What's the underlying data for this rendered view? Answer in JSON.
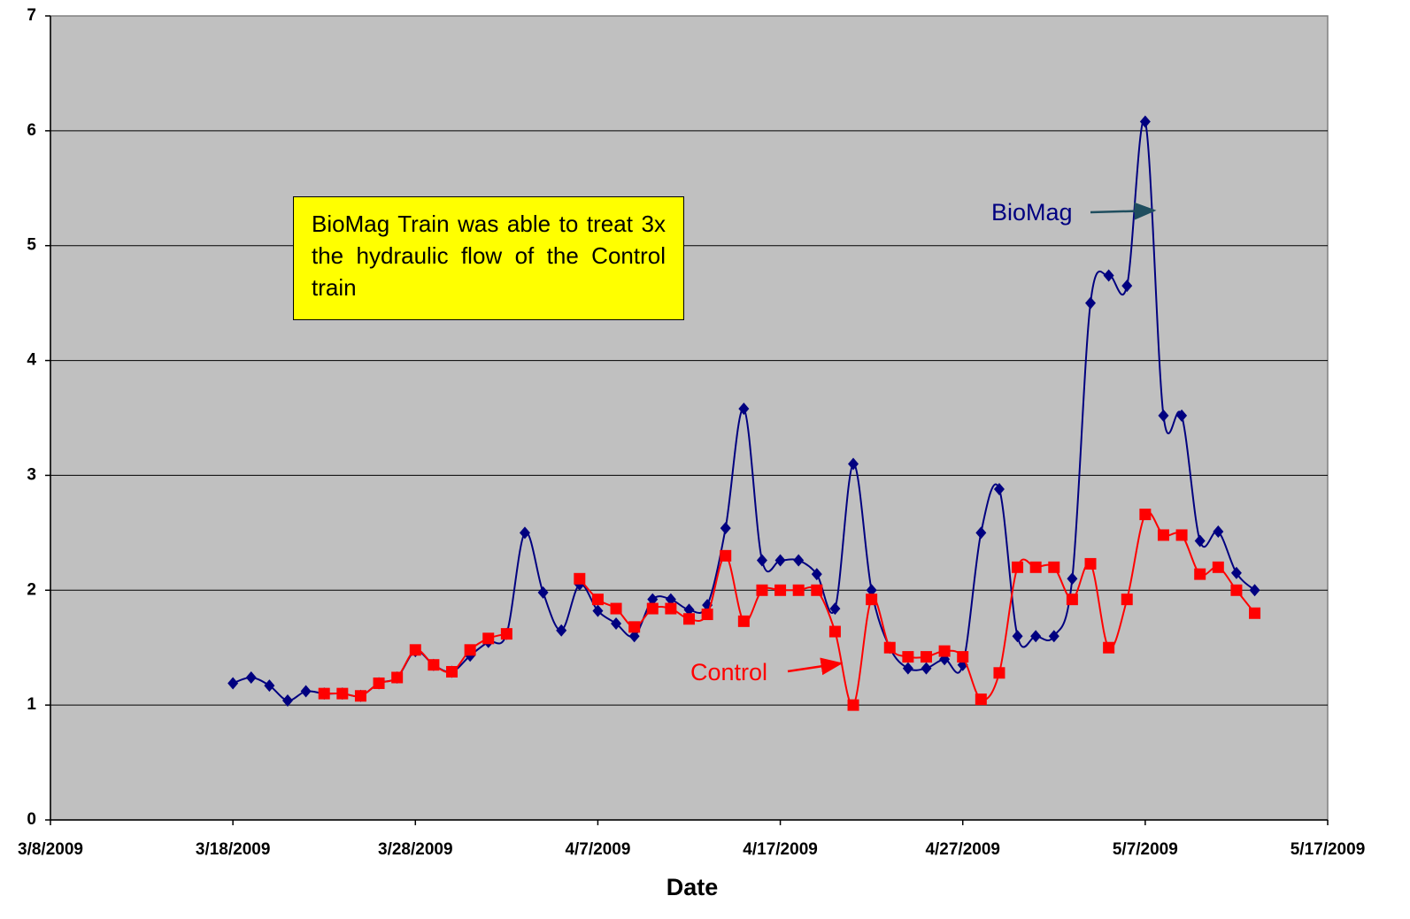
{
  "chart_data": {
    "type": "line",
    "x_label": "Date",
    "annotations": [
      "BioMag Train was able to treat 3x the hydraulic flow of the Control train",
      "BioMag",
      "Control"
    ],
    "x": [
      "3/18/2009",
      "3/19/2009",
      "3/20/2009",
      "3/21/2009",
      "3/22/2009",
      "3/23/2009",
      "3/24/2009",
      "3/25/2009",
      "3/26/2009",
      "3/27/2009",
      "3/28/2009",
      "3/29/2009",
      "3/30/2009",
      "3/31/2009",
      "4/1/2009",
      "4/2/2009",
      "4/3/2009",
      "4/4/2009",
      "4/5/2009",
      "4/6/2009",
      "4/7/2009",
      "4/8/2009",
      "4/9/2009",
      "4/10/2009",
      "4/11/2009",
      "4/12/2009",
      "4/13/2009",
      "4/14/2009",
      "4/15/2009",
      "4/16/2009",
      "4/17/2009",
      "4/18/2009",
      "4/19/2009",
      "4/20/2009",
      "4/21/2009",
      "4/22/2009",
      "4/23/2009",
      "4/24/2009",
      "4/25/2009",
      "4/26/2009",
      "4/27/2009",
      "4/28/2009",
      "4/29/2009",
      "4/30/2009",
      "5/1/2009",
      "5/2/2009",
      "5/3/2009",
      "5/4/2009",
      "5/5/2009",
      "5/6/2009",
      "5/7/2009",
      "5/8/2009",
      "5/9/2009",
      "5/10/2009",
      "5/11/2009",
      "5/12/2009",
      "5/13/2009"
    ],
    "series": [
      {
        "name": "BioMag",
        "color": "#000080",
        "marker": "diamond",
        "values": [
          1.19,
          1.24,
          1.17,
          1.04,
          1.12,
          1.1,
          1.1,
          1.08,
          1.19,
          1.24,
          1.47,
          1.35,
          1.29,
          1.43,
          1.55,
          1.62,
          2.5,
          1.98,
          1.65,
          2.05,
          1.82,
          1.71,
          1.6,
          1.92,
          1.92,
          1.83,
          1.87,
          2.54,
          3.58,
          2.26,
          2.26,
          2.26,
          2.14,
          1.84,
          3.1,
          2.0,
          1.5,
          1.32,
          1.32,
          1.4,
          1.35,
          2.5,
          2.88,
          1.6,
          1.6,
          1.6,
          2.1,
          4.5,
          4.74,
          4.65,
          6.08,
          3.52,
          3.52,
          2.43,
          2.51,
          2.15,
          2.0
        ]
      },
      {
        "name": "Control",
        "color": "#ff0000",
        "marker": "square",
        "values": [
          null,
          null,
          null,
          null,
          null,
          1.1,
          1.1,
          1.08,
          1.19,
          1.24,
          1.48,
          1.35,
          1.29,
          1.48,
          1.58,
          1.62,
          null,
          null,
          null,
          2.1,
          1.92,
          1.84,
          1.68,
          1.84,
          1.84,
          1.75,
          1.79,
          2.3,
          1.73,
          2.0,
          2.0,
          2.0,
          2.0,
          1.64,
          1.0,
          1.92,
          1.5,
          1.42,
          1.42,
          1.47,
          1.42,
          1.05,
          1.28,
          2.2,
          2.2,
          2.2,
          1.92,
          2.23,
          1.5,
          1.92,
          2.66,
          2.48,
          2.48,
          2.14,
          2.2,
          2.0,
          1.8
        ]
      }
    ],
    "xlim": [
      "3/8/2009",
      "5/17/2009"
    ],
    "xticks": [
      "3/8/2009",
      "3/18/2009",
      "3/28/2009",
      "4/7/2009",
      "4/17/2009",
      "4/27/2009",
      "5/7/2009",
      "5/17/2009"
    ],
    "ylim": [
      0,
      7
    ],
    "yticks": [
      0,
      1,
      2,
      3,
      4,
      5,
      6,
      7
    ],
    "grid": true,
    "background": "#c0c0c0",
    "smooth": true
  }
}
